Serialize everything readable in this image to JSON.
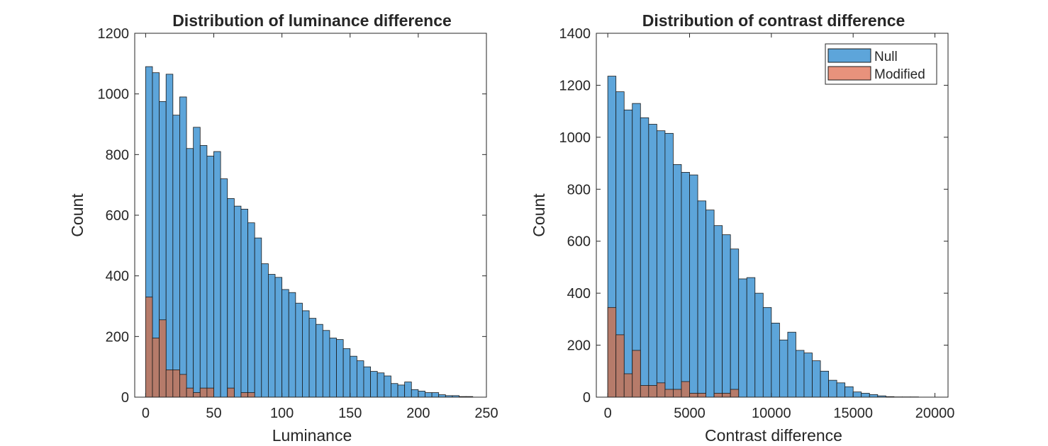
{
  "colors": {
    "null_fill": "#5DA5DA",
    "modified_fill": "#B67B6A",
    "modified_legend_fill": "#E8927C",
    "bar_edge": "#1A1A1A",
    "axis": "#262626",
    "background": "#ffffff"
  },
  "chart_data": [
    {
      "type": "bar",
      "title": "Distribution of luminance difference",
      "xlabel": "Luminance",
      "ylabel": "Count",
      "xlim": [
        -8,
        250
      ],
      "ylim": [
        0,
        1200
      ],
      "xticks": [
        0,
        50,
        100,
        150,
        200,
        250
      ],
      "yticks": [
        0,
        200,
        400,
        600,
        800,
        1000,
        1200
      ],
      "grid": false,
      "bin_width": 5,
      "bin_start": 0,
      "series": [
        {
          "name": "Null",
          "values": [
            1090,
            1070,
            975,
            1065,
            930,
            990,
            820,
            890,
            830,
            795,
            810,
            720,
            655,
            630,
            620,
            575,
            525,
            440,
            405,
            395,
            355,
            345,
            310,
            285,
            260,
            240,
            220,
            195,
            190,
            160,
            135,
            120,
            100,
            85,
            80,
            70,
            45,
            40,
            50,
            25,
            20,
            15,
            15,
            8,
            5,
            5,
            2,
            2
          ]
        },
        {
          "name": "Modified",
          "values": [
            330,
            195,
            255,
            90,
            90,
            75,
            30,
            15,
            30,
            30,
            0,
            0,
            30,
            0,
            15,
            15,
            0,
            0,
            0,
            0,
            0,
            0,
            0,
            0,
            0,
            0,
            0,
            0,
            0,
            0,
            0,
            0,
            0,
            0,
            0,
            0,
            0,
            0,
            0,
            0,
            0,
            0,
            0,
            0,
            0,
            0,
            0,
            0
          ]
        }
      ]
    },
    {
      "type": "bar",
      "title": "Distribution of contrast difference",
      "xlabel": "Contrast difference",
      "ylabel": "Count",
      "xlim": [
        -700,
        20800
      ],
      "ylim": [
        0,
        1400
      ],
      "xticks": [
        0,
        5000,
        10000,
        15000,
        20000
      ],
      "yticks": [
        0,
        200,
        400,
        600,
        800,
        1000,
        1200,
        1400
      ],
      "grid": false,
      "legend_position": "top-right",
      "legend": [
        "Null",
        "Modified"
      ],
      "bin_width": 500,
      "bin_start": 0,
      "series": [
        {
          "name": "Null",
          "values": [
            1235,
            1175,
            1105,
            1130,
            1075,
            1050,
            1025,
            1015,
            895,
            865,
            855,
            755,
            720,
            660,
            625,
            570,
            455,
            460,
            400,
            345,
            285,
            220,
            250,
            180,
            170,
            140,
            100,
            65,
            55,
            40,
            20,
            15,
            10,
            5,
            2,
            1,
            1,
            1
          ]
        },
        {
          "name": "Modified",
          "values": [
            345,
            240,
            90,
            180,
            45,
            45,
            55,
            30,
            30,
            60,
            15,
            15,
            0,
            15,
            15,
            30,
            0,
            0,
            0,
            0,
            0,
            0,
            0,
            0,
            0,
            0,
            0,
            0,
            0,
            0,
            0,
            0,
            0,
            0,
            0,
            0,
            0,
            0
          ]
        }
      ]
    }
  ]
}
